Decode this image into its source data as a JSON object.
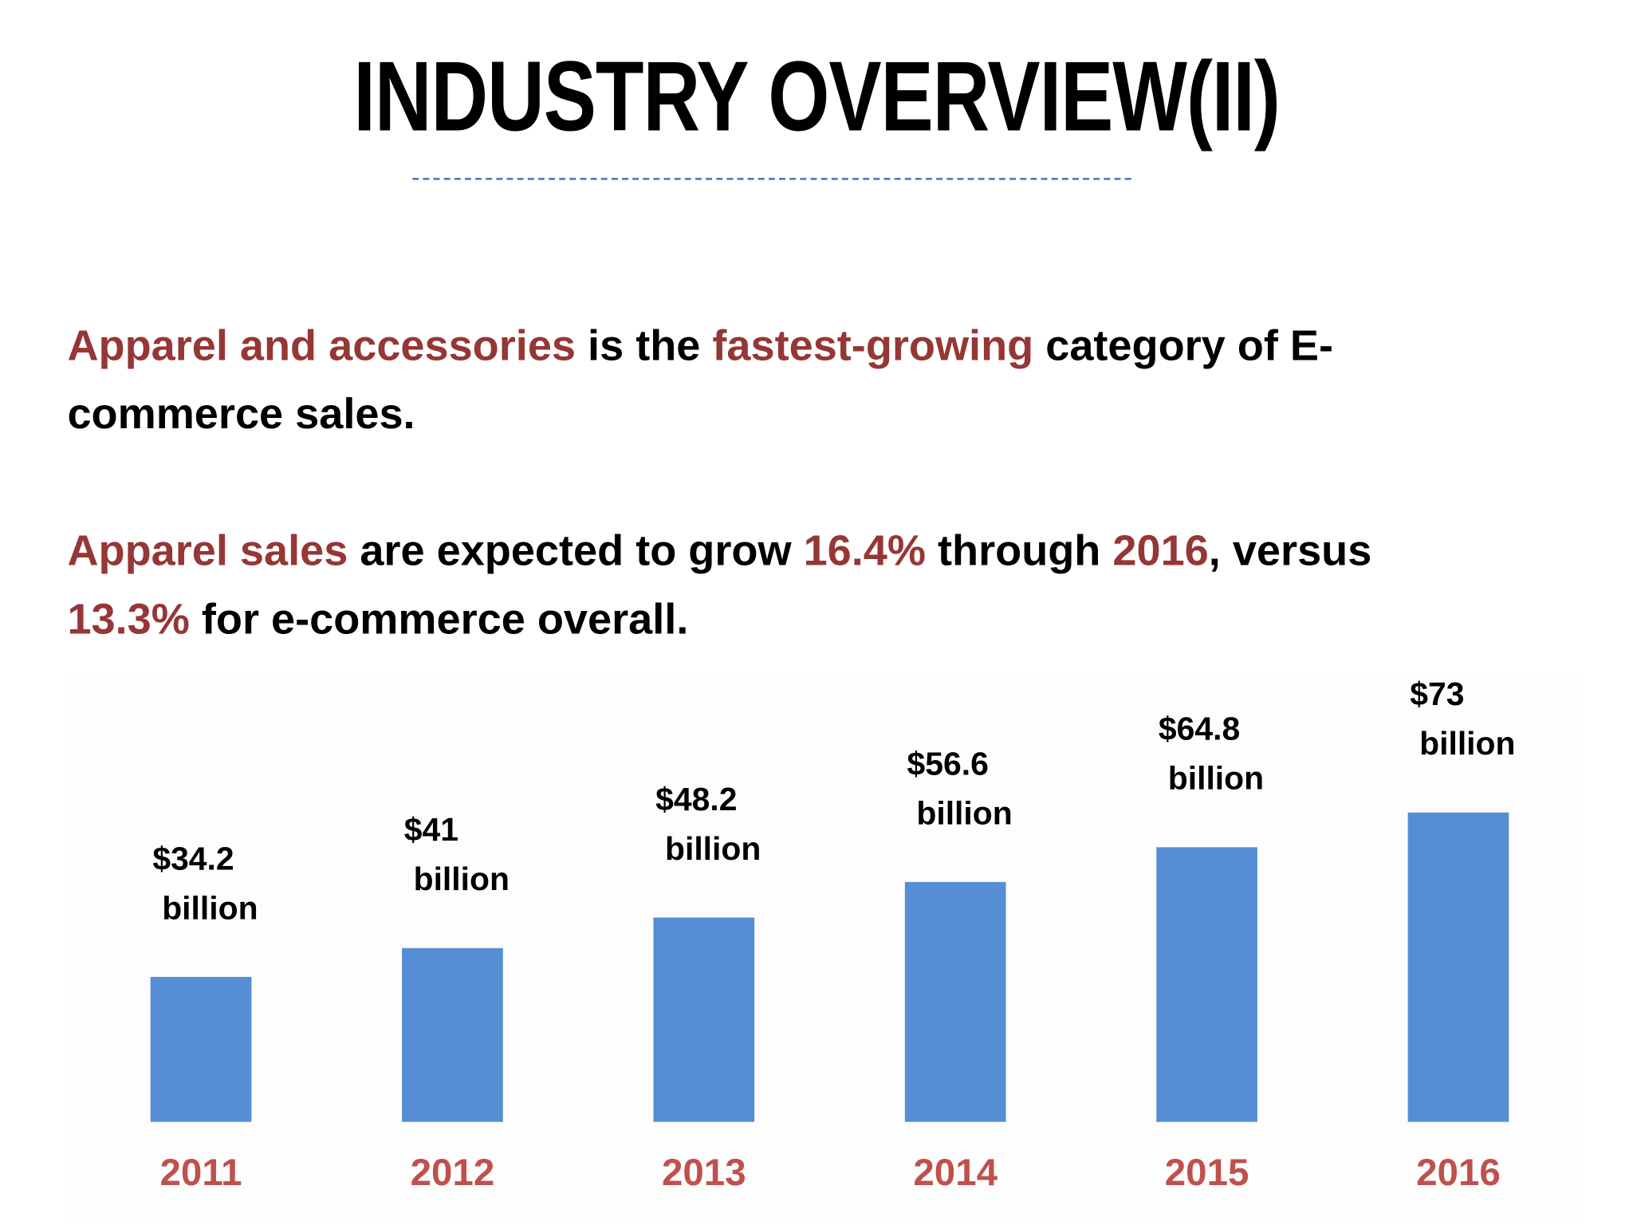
{
  "title": "INDUSTRY OVERVIEW(II)",
  "paragraph1": {
    "line1": [
      {
        "text": "Apparel and accessories",
        "highlight": true
      },
      {
        "text": " is the ",
        "highlight": false
      },
      {
        "text": "fastest-growing",
        "highlight": true
      },
      {
        "text": " category of E-",
        "highlight": false
      }
    ],
    "line2": [
      {
        "text": "commerce sales.",
        "highlight": false
      }
    ]
  },
  "paragraph2": {
    "line1": [
      {
        "text": "Apparel sales",
        "highlight": true
      },
      {
        "text": " are expected to grow ",
        "highlight": false
      },
      {
        "text": "16.4%",
        "highlight": true
      },
      {
        "text": " through ",
        "highlight": false
      },
      {
        "text": "2016",
        "highlight": true
      },
      {
        "text": ", versus",
        "highlight": false
      }
    ],
    "line2": [
      {
        "text": "13.3%",
        "highlight": true
      },
      {
        "text": " for e-commerce overall.",
        "highlight": false
      }
    ]
  },
  "colors": {
    "highlight": "#953735",
    "bar": "#558ed5",
    "year_label": "#c0504d",
    "divider": "#4a7bbf"
  },
  "chart_data": {
    "type": "bar",
    "categories": [
      "2011",
      "2012",
      "2013",
      "2014",
      "2015",
      "2016"
    ],
    "values": [
      34.2,
      41,
      48.2,
      56.6,
      64.8,
      73
    ],
    "data_labels": [
      [
        "$34.2",
        "billion"
      ],
      [
        "$41",
        "billion"
      ],
      [
        "$48.2",
        "billion"
      ],
      [
        "$56.6",
        "billion"
      ],
      [
        "$64.8",
        "billion"
      ],
      [
        "$73",
        "billion"
      ]
    ],
    "title": "",
    "xlabel": "",
    "ylabel": "",
    "ylim": [
      0,
      73
    ],
    "grid": false,
    "legend": "none"
  }
}
